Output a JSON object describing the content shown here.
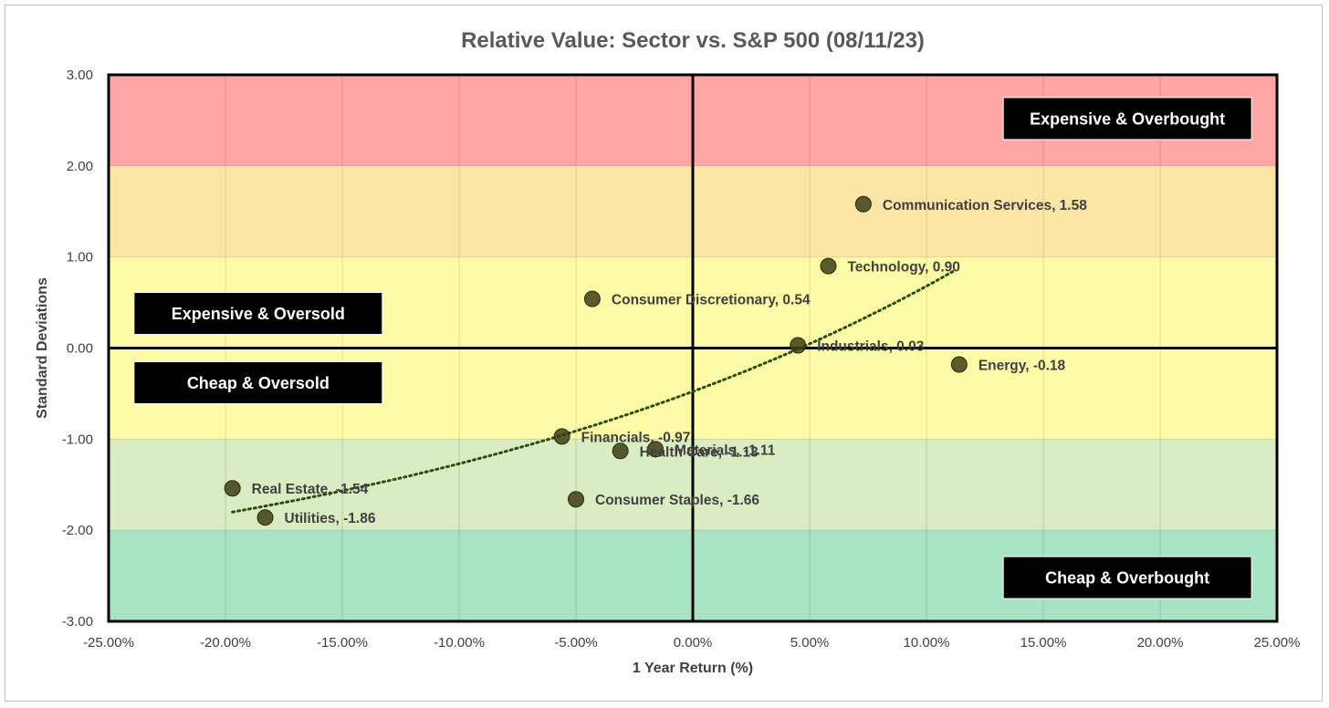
{
  "chart_data": {
    "type": "scatter",
    "title": "Relative Value: Sector vs. S&P 500 (08/11/23)",
    "xlabel": "1 Year Return (%)",
    "ylabel": "Standard Deviations",
    "xlim": [
      -25,
      25
    ],
    "ylim": [
      -3,
      3
    ],
    "x_ticks": [
      -25,
      -20,
      -15,
      -10,
      -5,
      0,
      5,
      10,
      15,
      20,
      25
    ],
    "x_tick_labels": [
      "-25.00%",
      "-20.00%",
      "-15.00%",
      "-10.00%",
      "-5.00%",
      "0.00%",
      "5.00%",
      "10.00%",
      "15.00%",
      "20.00%",
      "25.00%"
    ],
    "y_ticks": [
      3,
      2,
      1,
      0,
      -1,
      -2,
      -3
    ],
    "y_tick_labels": [
      "3.00",
      "2.00",
      "1.00",
      "0.00",
      "-1.00",
      "-2.00",
      "-3.00"
    ],
    "grid": true,
    "bands": [
      {
        "from": 2,
        "to": 3,
        "color": "#ffa7a7"
      },
      {
        "from": 1,
        "to": 2,
        "color": "#fce6a6"
      },
      {
        "from": -1,
        "to": 1,
        "color": "#fdfca6"
      },
      {
        "from": -2,
        "to": -1,
        "color": "#d9ecc2"
      },
      {
        "from": -3,
        "to": -2,
        "color": "#a8e3c4"
      }
    ],
    "quadrant_labels": [
      {
        "text": "Expensive & Overbought",
        "x": 18.6,
        "y": 2.52
      },
      {
        "text": "Expensive & Oversold",
        "x": -18.6,
        "y": 0.38
      },
      {
        "text": "Cheap & Oversold",
        "x": -18.6,
        "y": -0.38
      },
      {
        "text": "Cheap & Overbought",
        "x": 18.6,
        "y": -2.52
      }
    ],
    "points": [
      {
        "label": "Communication Services, 1.58",
        "x": 7.3,
        "y": 1.58
      },
      {
        "label": "Technology, 0.90",
        "x": 5.8,
        "y": 0.9
      },
      {
        "label": "Consumer Discretionary, 0.54",
        "x": -4.3,
        "y": 0.54
      },
      {
        "label": "Industrials, 0.03",
        "x": 4.5,
        "y": 0.03
      },
      {
        "label": "Energy, -0.18",
        "x": 11.4,
        "y": -0.18
      },
      {
        "label": "Financials, -0.97",
        "x": -5.6,
        "y": -0.97
      },
      {
        "label": "Materials, -1.11",
        "x": -1.6,
        "y": -1.11
      },
      {
        "label": "Health Care, -1.13",
        "x": -3.1,
        "y": -1.13
      },
      {
        "label": "Consumer Staples, -1.66",
        "x": -5.0,
        "y": -1.66
      },
      {
        "label": "Real Estate, -1.54",
        "x": -19.7,
        "y": -1.54
      },
      {
        "label": "Utilities, -1.86",
        "x": -18.3,
        "y": -1.86
      }
    ],
    "trendline": {
      "type": "exponential",
      "from": {
        "x": -19.7,
        "y": -1.8
      },
      "to": {
        "x": 11.2,
        "y": 0.85
      },
      "style": "dotted"
    },
    "colors": {
      "marker": "#3d3d14",
      "trendline": "#2e4a14",
      "quad_box": "#000000",
      "axis": "#000000"
    }
  }
}
